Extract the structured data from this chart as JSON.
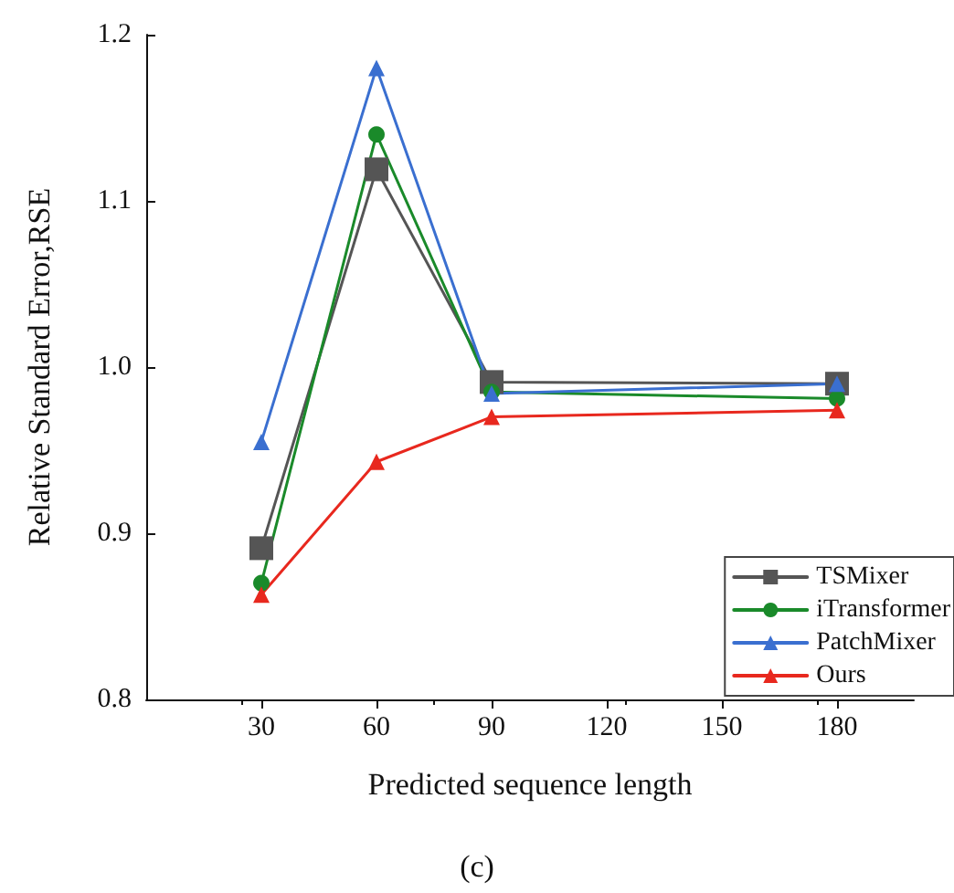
{
  "chart_data": {
    "type": "line",
    "xlabel": "Predicted sequence length",
    "ylabel": "Relative Standard Error,RSE",
    "annotations": [
      "(c)"
    ],
    "x": [
      30,
      60,
      90,
      180
    ],
    "series": [
      {
        "name": "TSMixer",
        "color": "#555555",
        "marker": "square",
        "values": [
          0.891,
          1.119,
          0.991,
          0.99
        ]
      },
      {
        "name": "iTransformer",
        "color": "#1a8a2a",
        "marker": "circle",
        "values": [
          0.87,
          1.14,
          0.985,
          0.981
        ]
      },
      {
        "name": "PatchMixer",
        "color": "#3a6fd0",
        "marker": "triangle",
        "values": [
          0.955,
          1.18,
          0.984,
          0.99
        ]
      },
      {
        "name": "Ours",
        "color": "#e8281e",
        "marker": "triangle",
        "values": [
          0.863,
          0.943,
          0.97,
          0.974
        ]
      }
    ],
    "xlim": [
      0,
      200
    ],
    "xticks": [
      30,
      60,
      90,
      120,
      150,
      180
    ],
    "ylim": [
      0.8,
      1.2
    ],
    "yticks": [
      0.8,
      0.9,
      {
        "value": 1,
        "label": "1.0"
      },
      1.1,
      1.2
    ],
    "grid": false,
    "legend": "bottom right",
    "line_style": "solid"
  }
}
